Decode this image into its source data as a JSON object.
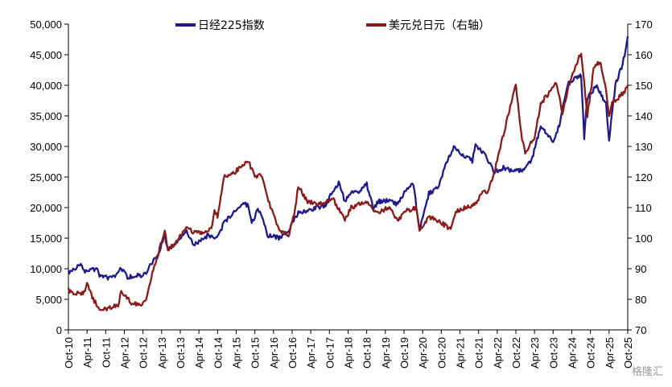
{
  "chart_data": {
    "type": "line",
    "legend_position": "top",
    "grid": false,
    "x_range": [
      "2010-10",
      "2025-10"
    ],
    "x_tick_labels": [
      "Oct-10",
      "Apr-11",
      "Oct-11",
      "Apr-12",
      "Oct-12",
      "Apr-13",
      "Oct-13",
      "Apr-14",
      "Oct-14",
      "Apr-15",
      "Oct-15",
      "Apr-16",
      "Oct-16",
      "Apr-17",
      "Oct-17",
      "Apr-18",
      "Oct-18",
      "Apr-19",
      "Oct-19",
      "Apr-20",
      "Oct-20",
      "Apr-21",
      "Oct-21",
      "Apr-22",
      "Oct-22",
      "Apr-23",
      "Oct-23",
      "Apr-24",
      "Oct-24",
      "Apr-25",
      "Oct-25"
    ],
    "y_left": {
      "range": [
        0,
        50000
      ],
      "tick_labels": [
        "0",
        "5,000",
        "10,000",
        "15,000",
        "20,000",
        "25,000",
        "30,000",
        "35,000",
        "40,000",
        "45,000",
        "50,000"
      ]
    },
    "y_right": {
      "range": [
        70,
        170
      ],
      "tick_labels": [
        "70",
        "80",
        "90",
        "100",
        "110",
        "120",
        "130",
        "140",
        "150",
        "160",
        "170"
      ]
    },
    "series": [
      {
        "name": "日经225指数",
        "axis": "left",
        "color": "#1f1a8c",
        "points": [
          [
            "2010-10",
            9300
          ],
          [
            "2011-01",
            10400
          ],
          [
            "2011-02",
            10700
          ],
          [
            "2011-03",
            9500
          ],
          [
            "2011-05",
            9700
          ],
          [
            "2011-07",
            10000
          ],
          [
            "2011-08",
            9000
          ],
          [
            "2011-11",
            8500
          ],
          [
            "2011-12",
            8400
          ],
          [
            "2012-02",
            9300
          ],
          [
            "2012-03",
            10100
          ],
          [
            "2012-05",
            8600
          ],
          [
            "2012-06",
            8700
          ],
          [
            "2012-08",
            9000
          ],
          [
            "2012-10",
            8800
          ],
          [
            "2012-11",
            9400
          ],
          [
            "2012-12",
            10300
          ],
          [
            "2013-01",
            11000
          ],
          [
            "2013-03",
            12300
          ],
          [
            "2013-05",
            15600
          ],
          [
            "2013-06",
            13000
          ],
          [
            "2013-09",
            14500
          ],
          [
            "2013-12",
            16200
          ],
          [
            "2014-02",
            14100
          ],
          [
            "2014-04",
            14300
          ],
          [
            "2014-07",
            15500
          ],
          [
            "2014-10",
            15000
          ],
          [
            "2014-12",
            17500
          ],
          [
            "2015-02",
            18500
          ],
          [
            "2015-04",
            19800
          ],
          [
            "2015-06",
            20800
          ],
          [
            "2015-08",
            20300
          ],
          [
            "2015-09",
            17400
          ],
          [
            "2015-11",
            19800
          ],
          [
            "2016-01",
            17500
          ],
          [
            "2016-02",
            15500
          ],
          [
            "2016-06",
            15000
          ],
          [
            "2016-09",
            16500
          ],
          [
            "2016-12",
            19300
          ],
          [
            "2017-03",
            19500
          ],
          [
            "2017-06",
            20000
          ],
          [
            "2017-09",
            20400
          ],
          [
            "2017-11",
            22700
          ],
          [
            "2018-01",
            24000
          ],
          [
            "2018-03",
            21000
          ],
          [
            "2018-05",
            22500
          ],
          [
            "2018-07",
            22500
          ],
          [
            "2018-10",
            23800
          ],
          [
            "2018-12",
            20000
          ],
          [
            "2019-02",
            21000
          ],
          [
            "2019-05",
            21100
          ],
          [
            "2019-08",
            20500
          ],
          [
            "2019-11",
            23300
          ],
          [
            "2020-01",
            23800
          ],
          [
            "2020-03",
            16500
          ],
          [
            "2020-06",
            22300
          ],
          [
            "2020-09",
            23300
          ],
          [
            "2020-11",
            26400
          ],
          [
            "2021-02",
            30000
          ],
          [
            "2021-04",
            29000
          ],
          [
            "2021-08",
            27600
          ],
          [
            "2021-09",
            30200
          ],
          [
            "2021-12",
            28800
          ],
          [
            "2022-03",
            25700
          ],
          [
            "2022-06",
            26500
          ],
          [
            "2022-09",
            26000
          ],
          [
            "2022-12",
            26100
          ],
          [
            "2023-03",
            27500
          ],
          [
            "2023-06",
            33500
          ],
          [
            "2023-10",
            30600
          ],
          [
            "2023-12",
            33500
          ],
          [
            "2024-02",
            38500
          ],
          [
            "2024-03",
            40300
          ],
          [
            "2024-07",
            41800
          ],
          [
            "2024-08",
            31500
          ],
          [
            "2024-09",
            38000
          ],
          [
            "2024-12",
            39800
          ],
          [
            "2025-03",
            37000
          ],
          [
            "2025-04",
            31100
          ],
          [
            "2025-06",
            40000
          ],
          [
            "2025-08",
            43000
          ],
          [
            "2025-09",
            45000
          ],
          [
            "2025-10",
            48000
          ]
        ]
      },
      {
        "name": "美元兑日元（右轴）",
        "axis": "right",
        "color": "#8b1a1a",
        "points": [
          [
            "2010-10",
            83
          ],
          [
            "2010-12",
            82
          ],
          [
            "2011-03",
            82
          ],
          [
            "2011-04",
            85
          ],
          [
            "2011-06",
            80
          ],
          [
            "2011-08",
            77
          ],
          [
            "2011-10",
            77
          ],
          [
            "2011-11",
            77
          ],
          [
            "2012-02",
            78
          ],
          [
            "2012-03",
            83
          ],
          [
            "2012-06",
            79
          ],
          [
            "2012-09",
            78
          ],
          [
            "2012-11",
            80
          ],
          [
            "2013-01",
            89
          ],
          [
            "2013-03",
            95
          ],
          [
            "2013-05",
            103
          ],
          [
            "2013-06",
            96
          ],
          [
            "2013-09",
            99
          ],
          [
            "2013-12",
            104
          ],
          [
            "2014-02",
            102
          ],
          [
            "2014-05",
            102
          ],
          [
            "2014-08",
            103
          ],
          [
            "2014-09",
            109
          ],
          [
            "2014-10",
            107
          ],
          [
            "2014-12",
            120
          ],
          [
            "2015-03",
            121
          ],
          [
            "2015-06",
            124
          ],
          [
            "2015-08",
            125
          ],
          [
            "2015-10",
            120
          ],
          [
            "2015-12",
            121
          ],
          [
            "2016-02",
            113
          ],
          [
            "2016-04",
            108
          ],
          [
            "2016-06",
            102
          ],
          [
            "2016-09",
            101
          ],
          [
            "2016-11",
            110
          ],
          [
            "2016-12",
            117
          ],
          [
            "2017-03",
            112
          ],
          [
            "2017-06",
            111
          ],
          [
            "2017-09",
            112
          ],
          [
            "2017-11",
            113
          ],
          [
            "2018-03",
            106
          ],
          [
            "2018-05",
            110
          ],
          [
            "2018-10",
            112
          ],
          [
            "2018-12",
            110
          ],
          [
            "2019-01",
            108
          ],
          [
            "2019-05",
            110
          ],
          [
            "2019-08",
            106
          ],
          [
            "2019-11",
            109
          ],
          [
            "2020-02",
            110
          ],
          [
            "2020-03",
            102
          ],
          [
            "2020-06",
            107
          ],
          [
            "2020-10",
            105
          ],
          [
            "2021-01",
            103
          ],
          [
            "2021-03",
            109
          ],
          [
            "2021-06",
            110
          ],
          [
            "2021-09",
            111
          ],
          [
            "2021-11",
            115
          ],
          [
            "2022-01",
            115
          ],
          [
            "2022-03",
            121
          ],
          [
            "2022-05",
            130
          ],
          [
            "2022-07",
            138
          ],
          [
            "2022-10",
            150
          ],
          [
            "2022-12",
            132
          ],
          [
            "2023-01",
            128
          ],
          [
            "2023-04",
            133
          ],
          [
            "2023-06",
            144
          ],
          [
            "2023-09",
            148
          ],
          [
            "2023-11",
            151
          ],
          [
            "2024-01",
            141
          ],
          [
            "2024-03",
            150
          ],
          [
            "2024-06",
            158
          ],
          [
            "2024-07",
            161
          ],
          [
            "2024-09",
            140
          ],
          [
            "2024-11",
            155
          ],
          [
            "2025-01",
            158
          ],
          [
            "2025-03",
            149
          ],
          [
            "2025-04",
            140
          ],
          [
            "2025-05",
            144
          ],
          [
            "2025-07",
            146
          ],
          [
            "2025-09",
            148
          ],
          [
            "2025-10",
            150
          ]
        ]
      }
    ]
  },
  "watermark": "格隆汇"
}
